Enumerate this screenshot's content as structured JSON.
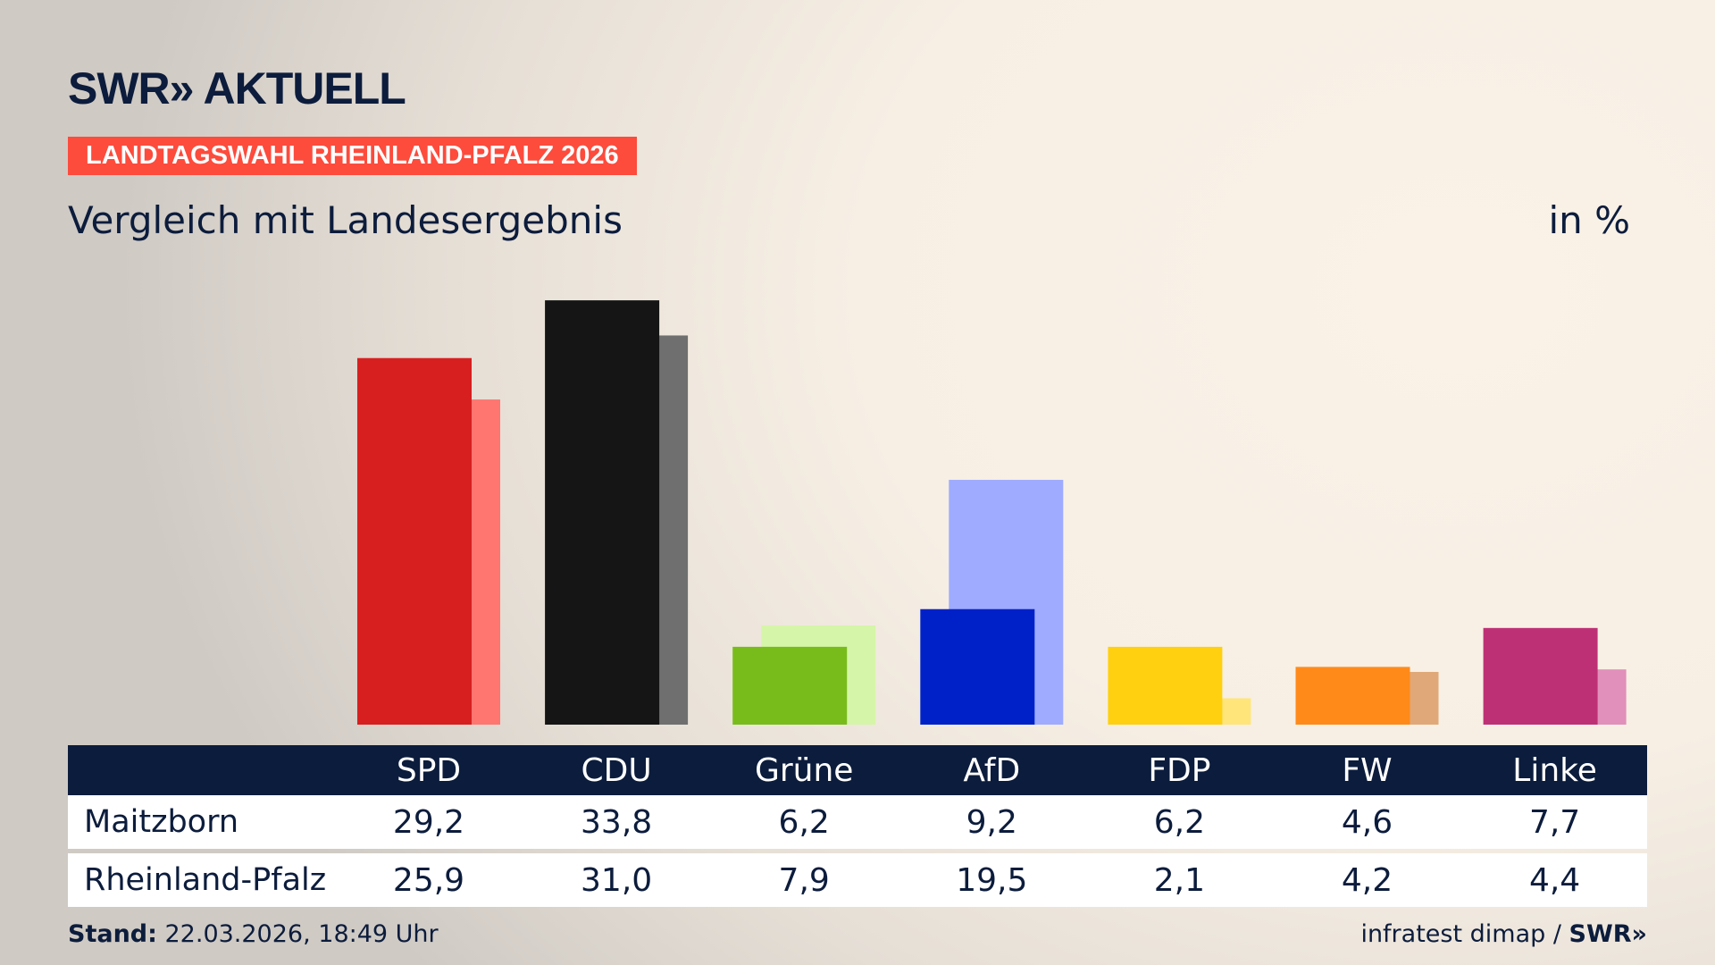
{
  "header": {
    "logo": "SWR» AKTUELL",
    "label": "LANDTAGSWAHL RHEINLAND-PFALZ 2026",
    "subtitle": "Vergleich mit Landesergebnis",
    "unit": "in %"
  },
  "chart_data": {
    "type": "bar",
    "categories": [
      "SPD",
      "CDU",
      "Grüne",
      "AfD",
      "FDP",
      "FW",
      "Linke"
    ],
    "series": [
      {
        "name": "Maitzborn",
        "values": [
          29.2,
          33.8,
          6.2,
          9.2,
          6.2,
          4.6,
          7.7
        ],
        "display": [
          "29,2",
          "33,8",
          "6,2",
          "9,2",
          "6,2",
          "4,6",
          "7,7"
        ]
      },
      {
        "name": "Rheinland-Pfalz",
        "values": [
          25.9,
          31.0,
          7.9,
          19.5,
          2.1,
          4.2,
          4.4
        ],
        "display": [
          "25,9",
          "31,0",
          "7,9",
          "19,5",
          "2,1",
          "4,2",
          "4,4"
        ]
      }
    ],
    "colors": [
      "#d71f1f",
      "#151515",
      "#78bc1b",
      "#0021c8",
      "#ffd00f",
      "#ff8a1a",
      "#be3075"
    ],
    "light_colors": [
      "#ff7570",
      "#6f6f6f",
      "#d5f5a8",
      "#9eabff",
      "#ffe57a",
      "#e0a878",
      "#e090ba"
    ]
  },
  "footer": {
    "stand_label": "Stand:",
    "stand_value": " 22.03.2026, 18:49 Uhr",
    "source": "infratest dimap / ",
    "source_logo": "SWR»"
  }
}
